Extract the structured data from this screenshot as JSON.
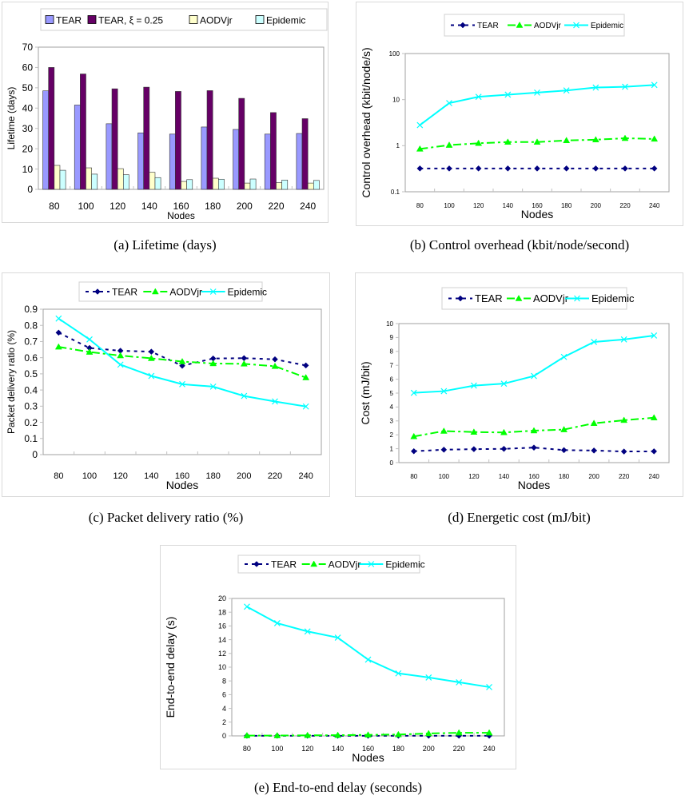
{
  "colors": {
    "tear_bar": "#9999ff",
    "tear_xi_bar": "#660066",
    "aodvjr_bar": "#ffffcc",
    "epidemic_bar": "#ccffff",
    "tear_line": "#000080",
    "aodvjr_line": "#00ff00",
    "epidemic_line": "#00ffff"
  },
  "captions": {
    "a": "(a)  Lifetime (days)",
    "b": "(b)  Control overhead (kbit/node/second)",
    "c": "(c)  Packet delivery ratio (%)",
    "d": "(d)  Energetic cost (mJ/bit)",
    "e": "(e)  End-to-end delay (seconds)"
  },
  "chart_data": [
    {
      "id": "a",
      "type": "bar",
      "title": "",
      "xlabel": "Nodes",
      "ylabel": "Lifetime (days)",
      "ylim": [
        0,
        70
      ],
      "yticks": [
        "0",
        "10",
        "20",
        "30",
        "40",
        "50",
        "60",
        "70"
      ],
      "yscale": "linear",
      "grid": false,
      "legend": "top",
      "categories": [
        "80",
        "100",
        "120",
        "140",
        "160",
        "180",
        "200",
        "220",
        "240"
      ],
      "series": [
        {
          "name": "TEAR",
          "color": "#9999ff",
          "values": [
            48.5,
            41.5,
            32.3,
            27.8,
            27.2,
            30.7,
            29.5,
            27.2,
            27.5
          ]
        },
        {
          "name": "TEAR, ξ = 0.25",
          "color": "#660066",
          "values": [
            60.0,
            56.8,
            49.5,
            50.3,
            48.2,
            48.6,
            44.8,
            37.8,
            34.8
          ]
        },
        {
          "name": "AODVjr",
          "color": "#ffffcc",
          "values": [
            11.8,
            10.6,
            10.2,
            8.4,
            3.9,
            5.5,
            3.1,
            3.3,
            3.1
          ]
        },
        {
          "name": "Epidemic",
          "color": "#ccffff",
          "values": [
            9.4,
            7.5,
            7.2,
            5.8,
            4.8,
            5.0,
            5.1,
            4.6,
            4.4
          ]
        }
      ]
    },
    {
      "id": "b",
      "type": "line",
      "title": "",
      "xlabel": "Nodes",
      "ylabel": "Control overhead (kbit/node/s)",
      "ylim": [
        0.1,
        100
      ],
      "yticks": [
        "0.1",
        "1",
        "10",
        "100"
      ],
      "yscale": "log",
      "grid": false,
      "legend": "top",
      "categories": [
        "80",
        "100",
        "120",
        "140",
        "160",
        "180",
        "200",
        "220",
        "240"
      ],
      "series": [
        {
          "name": "TEAR",
          "color": "#000080",
          "marker": "diamond",
          "dash": "dotted",
          "values": [
            0.32,
            0.32,
            0.32,
            0.32,
            0.32,
            0.32,
            0.32,
            0.32,
            0.32
          ]
        },
        {
          "name": "AODVjr",
          "color": "#00ff00",
          "marker": "triangle",
          "dash": "dashdot",
          "values": [
            0.85,
            1.03,
            1.13,
            1.2,
            1.2,
            1.3,
            1.35,
            1.45,
            1.4
          ]
        },
        {
          "name": "Epidemic",
          "color": "#00ffff",
          "marker": "x",
          "dash": "solid",
          "values": [
            2.8,
            8.4,
            11.5,
            12.8,
            14.2,
            15.8,
            18.3,
            19.0,
            20.8
          ]
        }
      ]
    },
    {
      "id": "c",
      "type": "line",
      "title": "",
      "xlabel": "Nodes",
      "ylabel": "Packet delivery ratio (%)",
      "ylim": [
        0,
        0.9
      ],
      "yticks": [
        "0",
        "0.1",
        "0.2",
        "0.3",
        "0.4",
        "0.5",
        "0.6",
        "0.7",
        "0.8",
        "0.9"
      ],
      "yscale": "linear",
      "grid": false,
      "legend": "top",
      "categories": [
        "80",
        "100",
        "120",
        "140",
        "160",
        "180",
        "200",
        "220",
        "240"
      ],
      "series": [
        {
          "name": "TEAR",
          "color": "#000080",
          "marker": "diamond",
          "dash": "dotted",
          "values": [
            0.755,
            0.66,
            0.643,
            0.637,
            0.55,
            0.595,
            0.597,
            0.59,
            0.552
          ]
        },
        {
          "name": "AODVjr",
          "color": "#00ff00",
          "marker": "triangle",
          "dash": "dashdot",
          "values": [
            0.667,
            0.635,
            0.613,
            0.596,
            0.576,
            0.564,
            0.562,
            0.547,
            0.477
          ]
        },
        {
          "name": "Epidemic",
          "color": "#00ffff",
          "marker": "x",
          "dash": "solid",
          "values": [
            0.842,
            0.713,
            0.557,
            0.487,
            0.436,
            0.421,
            0.363,
            0.329,
            0.298
          ]
        }
      ]
    },
    {
      "id": "d",
      "type": "line",
      "title": "",
      "xlabel": "Nodes",
      "ylabel": "Cost (mJ/bit)",
      "ylim": [
        0,
        10
      ],
      "yticks": [
        "0",
        "1",
        "2",
        "3",
        "4",
        "5",
        "6",
        "7",
        "8",
        "9",
        "10"
      ],
      "yscale": "linear",
      "grid": false,
      "legend": "top",
      "categories": [
        "80",
        "100",
        "120",
        "140",
        "160",
        "180",
        "200",
        "220",
        "240"
      ],
      "series": [
        {
          "name": "TEAR",
          "color": "#000080",
          "marker": "diamond",
          "dash": "dotted",
          "values": [
            0.82,
            0.93,
            0.97,
            0.99,
            1.08,
            0.9,
            0.87,
            0.8,
            0.81
          ]
        },
        {
          "name": "AODVjr",
          "color": "#00ff00",
          "marker": "triangle",
          "dash": "dashdot",
          "values": [
            1.88,
            2.27,
            2.2,
            2.17,
            2.3,
            2.38,
            2.83,
            3.05,
            3.23
          ]
        },
        {
          "name": "Epidemic",
          "color": "#00ffff",
          "marker": "x",
          "dash": "solid",
          "values": [
            5.02,
            5.14,
            5.54,
            5.68,
            6.23,
            7.6,
            8.68,
            8.86,
            9.14
          ]
        }
      ]
    },
    {
      "id": "e",
      "type": "line",
      "title": "",
      "xlabel": "Nodes",
      "ylabel": "End-to-end delay (s)",
      "ylim": [
        0,
        20
      ],
      "yticks": [
        "0",
        "2",
        "4",
        "6",
        "8",
        "10",
        "12",
        "14",
        "16",
        "18",
        "20"
      ],
      "yscale": "linear",
      "grid": false,
      "legend": "top",
      "categories": [
        "80",
        "100",
        "120",
        "140",
        "160",
        "180",
        "200",
        "220",
        "240"
      ],
      "series": [
        {
          "name": "TEAR",
          "color": "#000080",
          "marker": "diamond",
          "dash": "dotted",
          "values": [
            0.02,
            0.02,
            0.02,
            0.02,
            0.02,
            0.02,
            0.02,
            0.02,
            0.02
          ]
        },
        {
          "name": "AODVjr",
          "color": "#00ff00",
          "marker": "triangle",
          "dash": "dashdot",
          "values": [
            0.05,
            0.05,
            0.08,
            0.1,
            0.15,
            0.2,
            0.35,
            0.45,
            0.45
          ]
        },
        {
          "name": "Epidemic",
          "color": "#00ffff",
          "marker": "x",
          "dash": "solid",
          "values": [
            18.8,
            16.4,
            15.2,
            14.3,
            11.1,
            9.1,
            8.5,
            7.8,
            7.1
          ]
        }
      ]
    }
  ]
}
